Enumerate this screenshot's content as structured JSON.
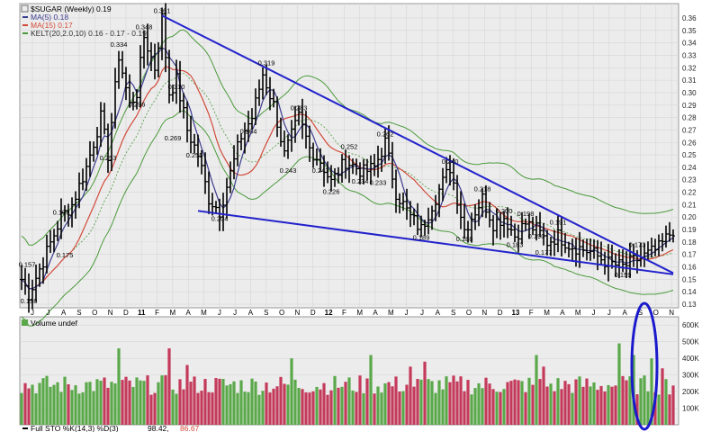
{
  "price_legend": {
    "symbol_line": "$SUGAR (Weekly) 0.19",
    "ma5": "MA(5) 0.18",
    "ma15": "MA(15) 0.17",
    "kelt": "KELT(20,2.0,10) 0.16 - 0.17 - 0.19"
  },
  "volume_legend": "Volume undef",
  "sto_legend": {
    "prefix": "Full STO %K(14,3) %D(3)",
    "k_value": "98.42,",
    "d_value": "86.67"
  },
  "colors": {
    "background": "#ffffff",
    "price_panel_bg": "#ececec",
    "price_bars": "#000000",
    "ma5": "#3c3c90",
    "ma15": "#d24a3a",
    "kelt": "#4a9a3a",
    "trendline": "#2222cc",
    "volume_up": "#5aa84a",
    "volume_down": "#c43a5a",
    "highlight_ellipse": "#1a1acc"
  },
  "chart_data": {
    "type": "line",
    "title": "$SUGAR (Weekly) 0.19",
    "x_tick_labels": [
      "J",
      "J",
      "A",
      "S",
      "O",
      "N",
      "D",
      "11",
      "F",
      "M",
      "A",
      "M",
      "J",
      "J",
      "A",
      "S",
      "O",
      "N",
      "D",
      "12",
      "F",
      "M",
      "A",
      "M",
      "J",
      "J",
      "A",
      "S",
      "O",
      "N",
      "D",
      "13",
      "F",
      "M",
      "A",
      "M",
      "J",
      "J",
      "A",
      "S",
      "O",
      "N"
    ],
    "y_axis": {
      "ticks": [
        "0.13",
        "0.14",
        "0.15",
        "0.16",
        "0.17",
        "0.18",
        "0.19",
        "0.20",
        "0.21",
        "0.22",
        "0.23",
        "0.24",
        "0.25",
        "0.26",
        "0.27",
        "0.28",
        "0.29",
        "0.30",
        "0.31",
        "0.32",
        "0.33",
        "0.34",
        "0.35",
        "0.36"
      ],
      "ylim": [
        0.13,
        0.37
      ],
      "side": "right"
    },
    "price_annotations": [
      {
        "label": "0.157",
        "week": 0,
        "value": 0.157
      },
      {
        "label": "0.138",
        "week": 2,
        "value": 0.138
      },
      {
        "label": "0.199",
        "week": 11,
        "value": 0.199
      },
      {
        "label": "0.175",
        "week": 12,
        "value": 0.175
      },
      {
        "label": "0.253",
        "week": 24,
        "value": 0.253
      },
      {
        "label": "0.334",
        "week": 27,
        "value": 0.334
      },
      {
        "label": "0.296",
        "week": 32,
        "value": 0.296
      },
      {
        "label": "0.348",
        "week": 34,
        "value": 0.348
      },
      {
        "label": "0.361",
        "week": 39,
        "value": 0.361
      },
      {
        "label": "0.310",
        "week": 43,
        "value": 0.31
      },
      {
        "label": "0.269",
        "week": 42,
        "value": 0.269
      },
      {
        "label": "0.255",
        "week": 48,
        "value": 0.255
      },
      {
        "label": "0.204",
        "week": 55,
        "value": 0.204
      },
      {
        "label": "0.264",
        "week": 63,
        "value": 0.264
      },
      {
        "label": "0.319",
        "week": 68,
        "value": 0.319
      },
      {
        "label": "0.243",
        "week": 74,
        "value": 0.243
      },
      {
        "label": "0.283",
        "week": 77,
        "value": 0.283
      },
      {
        "label": "0.243",
        "week": 83,
        "value": 0.243
      },
      {
        "label": "0.226",
        "week": 86,
        "value": 0.226
      },
      {
        "label": "0.252",
        "week": 91,
        "value": 0.252
      },
      {
        "label": "0.234",
        "week": 94,
        "value": 0.234
      },
      {
        "label": "0.233",
        "week": 99,
        "value": 0.233
      },
      {
        "label": "0.262",
        "week": 101,
        "value": 0.262
      },
      {
        "label": "0.189",
        "week": 111,
        "value": 0.189
      },
      {
        "label": "0.240",
        "week": 119,
        "value": 0.24
      },
      {
        "label": "0.188",
        "week": 123,
        "value": 0.188
      },
      {
        "label": "0.218",
        "week": 128,
        "value": 0.218
      },
      {
        "label": "0.200",
        "week": 134,
        "value": 0.2
      },
      {
        "label": "0.183",
        "week": 137,
        "value": 0.183
      },
      {
        "label": "0.198",
        "week": 140,
        "value": 0.198
      },
      {
        "label": "0.190",
        "week": 143,
        "value": 0.19
      },
      {
        "label": "0.191",
        "week": 149,
        "value": 0.191
      },
      {
        "label": "0.177",
        "week": 145,
        "value": 0.177
      },
      {
        "label": "0.159",
        "week": 167,
        "value": 0.159
      },
      {
        "label": "0.173",
        "week": 171,
        "value": 0.173
      }
    ],
    "price_anchors": [
      [
        0,
        0.15
      ],
      [
        2,
        0.138
      ],
      [
        6,
        0.165
      ],
      [
        11,
        0.2
      ],
      [
        14,
        0.21
      ],
      [
        18,
        0.24
      ],
      [
        22,
        0.28
      ],
      [
        24,
        0.25
      ],
      [
        27,
        0.33
      ],
      [
        30,
        0.29
      ],
      [
        32,
        0.3
      ],
      [
        34,
        0.345
      ],
      [
        37,
        0.32
      ],
      [
        39,
        0.36
      ],
      [
        41,
        0.3
      ],
      [
        43,
        0.31
      ],
      [
        46,
        0.27
      ],
      [
        49,
        0.25
      ],
      [
        52,
        0.215
      ],
      [
        55,
        0.205
      ],
      [
        58,
        0.235
      ],
      [
        61,
        0.265
      ],
      [
        64,
        0.28
      ],
      [
        67,
        0.315
      ],
      [
        70,
        0.29
      ],
      [
        73,
        0.25
      ],
      [
        77,
        0.28
      ],
      [
        80,
        0.255
      ],
      [
        83,
        0.245
      ],
      [
        86,
        0.228
      ],
      [
        90,
        0.245
      ],
      [
        95,
        0.236
      ],
      [
        98,
        0.24
      ],
      [
        101,
        0.26
      ],
      [
        104,
        0.22
      ],
      [
        108,
        0.2
      ],
      [
        111,
        0.19
      ],
      [
        114,
        0.21
      ],
      [
        119,
        0.24
      ],
      [
        123,
        0.19
      ],
      [
        128,
        0.215
      ],
      [
        131,
        0.195
      ],
      [
        134,
        0.2
      ],
      [
        137,
        0.185
      ],
      [
        140,
        0.195
      ],
      [
        143,
        0.19
      ],
      [
        146,
        0.18
      ],
      [
        149,
        0.185
      ],
      [
        152,
        0.178
      ],
      [
        158,
        0.172
      ],
      [
        163,
        0.163
      ],
      [
        167,
        0.16
      ],
      [
        171,
        0.166
      ],
      [
        174,
        0.17
      ],
      [
        177,
        0.175
      ],
      [
        181,
        0.19
      ]
    ],
    "trendlines": [
      {
        "name": "upper",
        "from": [
          39,
          0.362
        ],
        "to": [
          181,
          0.155
        ]
      },
      {
        "name": "lower",
        "from": [
          49,
          0.205
        ],
        "to": [
          181,
          0.154
        ]
      }
    ],
    "volume_panel": {
      "legend": "Volume undef",
      "ticks": [
        "100K",
        "200K",
        "300K",
        "400K",
        "500K",
        "600K"
      ],
      "ylim": [
        0,
        650000
      ],
      "spikes": [
        [
          27,
          460000
        ],
        [
          41,
          460000
        ],
        [
          46,
          360000
        ],
        [
          75,
          400000
        ],
        [
          97,
          420000
        ],
        [
          108,
          350000
        ],
        [
          112,
          380000
        ],
        [
          143,
          420000
        ],
        [
          145,
          350000
        ],
        [
          166,
          490000
        ],
        [
          170,
          420000
        ],
        [
          175,
          400000
        ],
        [
          178,
          340000
        ]
      ]
    }
  }
}
